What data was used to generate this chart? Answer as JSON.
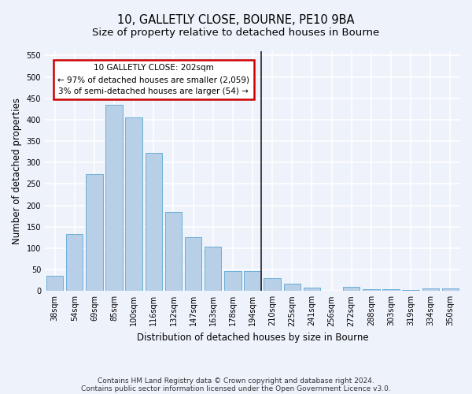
{
  "title1": "10, GALLETLY CLOSE, BOURNE, PE10 9BA",
  "title2": "Size of property relative to detached houses in Bourne",
  "xlabel": "Distribution of detached houses by size in Bourne",
  "ylabel": "Number of detached properties",
  "categories": [
    "38sqm",
    "54sqm",
    "69sqm",
    "85sqm",
    "100sqm",
    "116sqm",
    "132sqm",
    "147sqm",
    "163sqm",
    "178sqm",
    "194sqm",
    "210sqm",
    "225sqm",
    "241sqm",
    "256sqm",
    "272sqm",
    "288sqm",
    "303sqm",
    "319sqm",
    "334sqm",
    "350sqm"
  ],
  "values": [
    35,
    133,
    272,
    435,
    405,
    322,
    184,
    125,
    104,
    46,
    46,
    30,
    17,
    8,
    0,
    10,
    5,
    5,
    3,
    6,
    6
  ],
  "bar_color": "#b8cfe8",
  "bar_edge_color": "#6baed6",
  "vline_color": "#222222",
  "annotation_line1": "10 GALLETLY CLOSE: 202sqm",
  "annotation_line2": "← 97% of detached houses are smaller (2,059)",
  "annotation_line3": "3% of semi-detached houses are larger (54) →",
  "annotation_box_color": "#ffffff",
  "annotation_box_edge": "#cc0000",
  "ylim": [
    0,
    560
  ],
  "yticks": [
    0,
    50,
    100,
    150,
    200,
    250,
    300,
    350,
    400,
    450,
    500,
    550
  ],
  "footnote1": "Contains HM Land Registry data © Crown copyright and database right 2024.",
  "footnote2": "Contains public sector information licensed under the Open Government Licence v3.0.",
  "bg_color": "#eef2fb",
  "grid_color": "#ffffff",
  "title_fontsize": 10.5,
  "subtitle_fontsize": 9.5,
  "axis_label_fontsize": 8.5,
  "tick_fontsize": 7,
  "footnote_fontsize": 6.5,
  "vline_bar_index": 10
}
